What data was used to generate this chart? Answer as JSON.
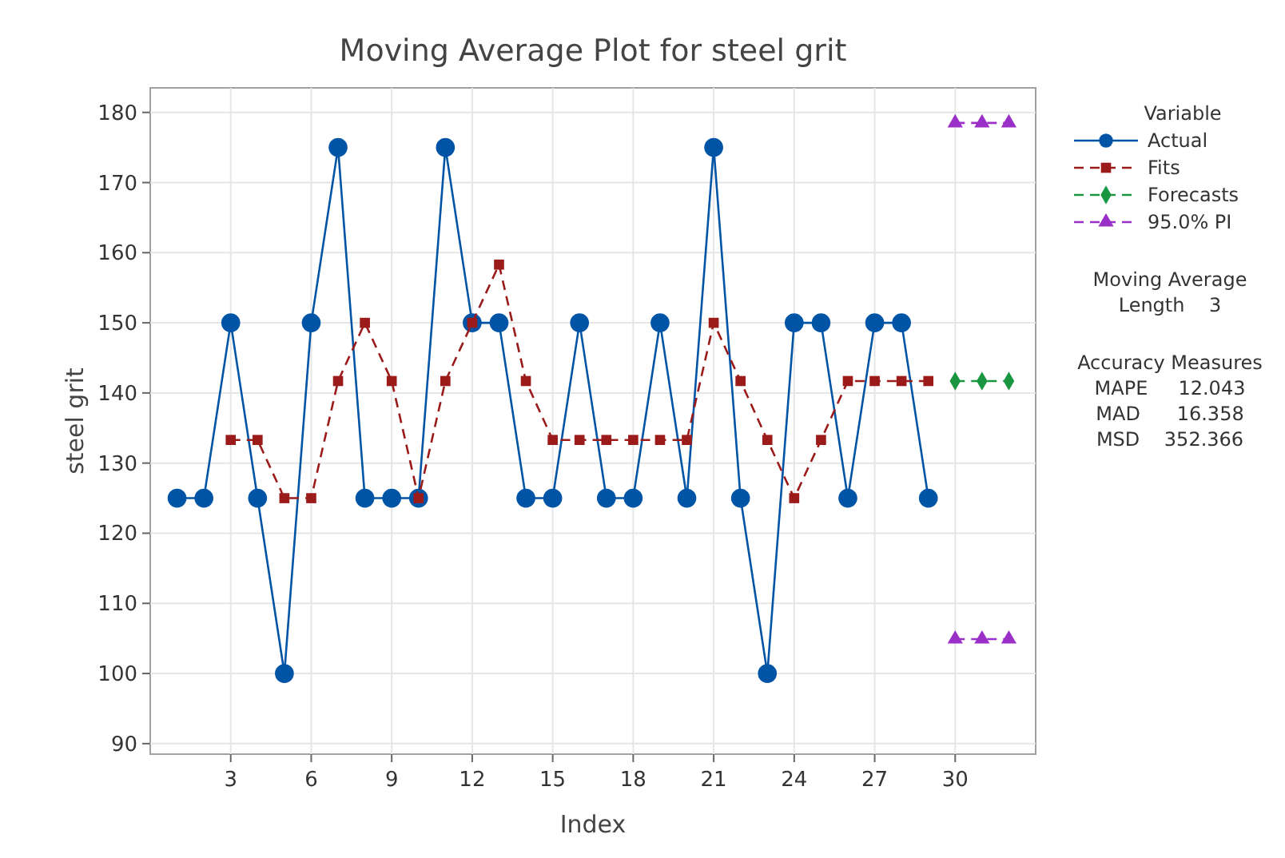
{
  "chart_data": {
    "type": "line",
    "title": "Moving Average Plot for steel grit",
    "xlabel": "Index",
    "ylabel": "steel grit",
    "legend_title": "Variable",
    "xlim": [
      0,
      33
    ],
    "xticks": [
      3,
      6,
      9,
      12,
      15,
      18,
      21,
      24,
      27,
      30
    ],
    "ylim": [
      88.5,
      183.5
    ],
    "yticks": [
      90,
      100,
      110,
      120,
      130,
      140,
      150,
      160,
      170,
      180
    ],
    "grid": true,
    "legend": "right",
    "series": [
      {
        "name": "Actual",
        "color": "#0054a6",
        "marker": "circle",
        "line_style": "solid",
        "x": [
          1,
          2,
          3,
          4,
          5,
          6,
          7,
          8,
          9,
          10,
          11,
          12,
          13,
          14,
          15,
          16,
          17,
          18,
          19,
          20,
          21,
          22,
          23,
          24,
          25,
          26,
          27,
          28,
          29
        ],
        "values": [
          125,
          125,
          150,
          125,
          100,
          150,
          175,
          125,
          125,
          125,
          175,
          150,
          150,
          125,
          125,
          150,
          125,
          125,
          150,
          125,
          175,
          125,
          100,
          150,
          150,
          125,
          150,
          150,
          125
        ]
      },
      {
        "name": "Fits",
        "color": "#9b1b1b",
        "marker": "square",
        "line_style": "dashed",
        "x": [
          3,
          4,
          5,
          6,
          7,
          8,
          9,
          10,
          11,
          12,
          13,
          14,
          15,
          16,
          17,
          18,
          19,
          20,
          21,
          22,
          23,
          24,
          25,
          26,
          27,
          28,
          29
        ],
        "values": [
          133.3,
          133.3,
          125,
          125,
          141.7,
          150,
          141.7,
          125,
          141.7,
          150,
          158.3,
          141.7,
          133.3,
          133.3,
          133.3,
          133.3,
          133.3,
          133.3,
          150,
          141.7,
          133.3,
          125,
          133.3,
          141.7,
          141.7,
          141.7,
          141.7
        ]
      },
      {
        "name": "Forecasts",
        "color": "#1a9641",
        "marker": "diamond",
        "line_style": "dashed",
        "x": [
          30,
          31,
          32
        ],
        "values": [
          141.7,
          141.7,
          141.7
        ]
      },
      {
        "name": "95.0% PI",
        "color": "#9b30c8",
        "marker": "triangle",
        "line_style": "dashed",
        "x": [
          30,
          31,
          32
        ],
        "values": [
          178.5,
          178.5,
          178.5
        ]
      },
      {
        "color": "#9b30c8",
        "marker": "triangle",
        "line_style": "dashed",
        "x": [
          30,
          31,
          32
        ],
        "values": [
          104.9,
          104.9,
          104.9
        ]
      }
    ],
    "annotations": [
      "Moving Average",
      "Length    3",
      "Accuracy Measures",
      "MAPE     12.043",
      "MAD      16.358",
      "MSD    352.366"
    ]
  }
}
